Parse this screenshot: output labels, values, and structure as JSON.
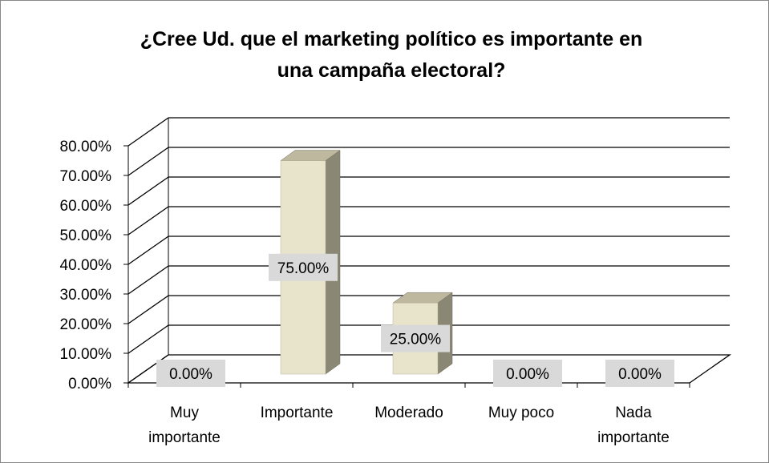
{
  "chart_data": {
    "type": "bar",
    "title_lines": [
      "¿Cree Ud. que el marketing político es importante en",
      "una campaña electoral?"
    ],
    "categories": [
      [
        "Muy",
        "importante"
      ],
      [
        "Importante"
      ],
      [
        "Moderado"
      ],
      [
        "Muy poco"
      ],
      [
        "Nada",
        "importante"
      ]
    ],
    "values": [
      0,
      75,
      25,
      0,
      0
    ],
    "data_labels": [
      "0.00%",
      "75.00%",
      "25.00%",
      "0.00%",
      "0.00%"
    ],
    "yticks": [
      "0.00%",
      "10.00%",
      "20.00%",
      "30.00%",
      "40.00%",
      "50.00%",
      "60.00%",
      "70.00%",
      "80.00%"
    ],
    "ylim": [
      0,
      80
    ],
    "grid": true,
    "three_d": true,
    "colors": {
      "bar_front": "#E8E3CB",
      "bar_side": "#8A8774",
      "bar_top": "#BDB89E",
      "grid": "#000000",
      "label_box": "#D9D9D9"
    }
  }
}
